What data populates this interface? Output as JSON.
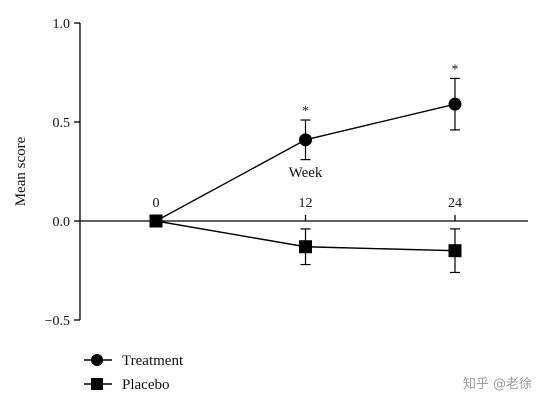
{
  "chart_data": {
    "type": "line",
    "xlabel": "Week",
    "ylabel": "Mean score",
    "x": [
      0,
      12,
      24
    ],
    "x_tick_labels": [
      "0",
      "12",
      "24"
    ],
    "xlim": [
      -12,
      34
    ],
    "ylim": [
      -0.5,
      1.0
    ],
    "y_ticks": [
      -0.5,
      0.0,
      0.5,
      1.0
    ],
    "y_tick_labels": [
      "−0.5",
      "0.0",
      "0.5",
      "1.0"
    ],
    "grid": false,
    "legend_position": "bottom-left",
    "series": [
      {
        "name": "Treatment",
        "marker": "circle",
        "values": [
          0.0,
          0.41,
          0.59
        ],
        "error_low": [
          null,
          0.31,
          0.46
        ],
        "error_high": [
          null,
          0.51,
          0.72
        ],
        "annotations": [
          "",
          "*",
          "*"
        ],
        "color": "#000000"
      },
      {
        "name": "Placebo",
        "marker": "square",
        "values": [
          0.0,
          -0.13,
          -0.15
        ],
        "error_low": [
          null,
          -0.22,
          -0.26
        ],
        "error_high": [
          null,
          -0.04,
          -0.04
        ],
        "annotations": [
          "",
          "",
          ""
        ],
        "color": "#000000"
      }
    ]
  },
  "watermark": {
    "text": "知乎 @老徐"
  }
}
